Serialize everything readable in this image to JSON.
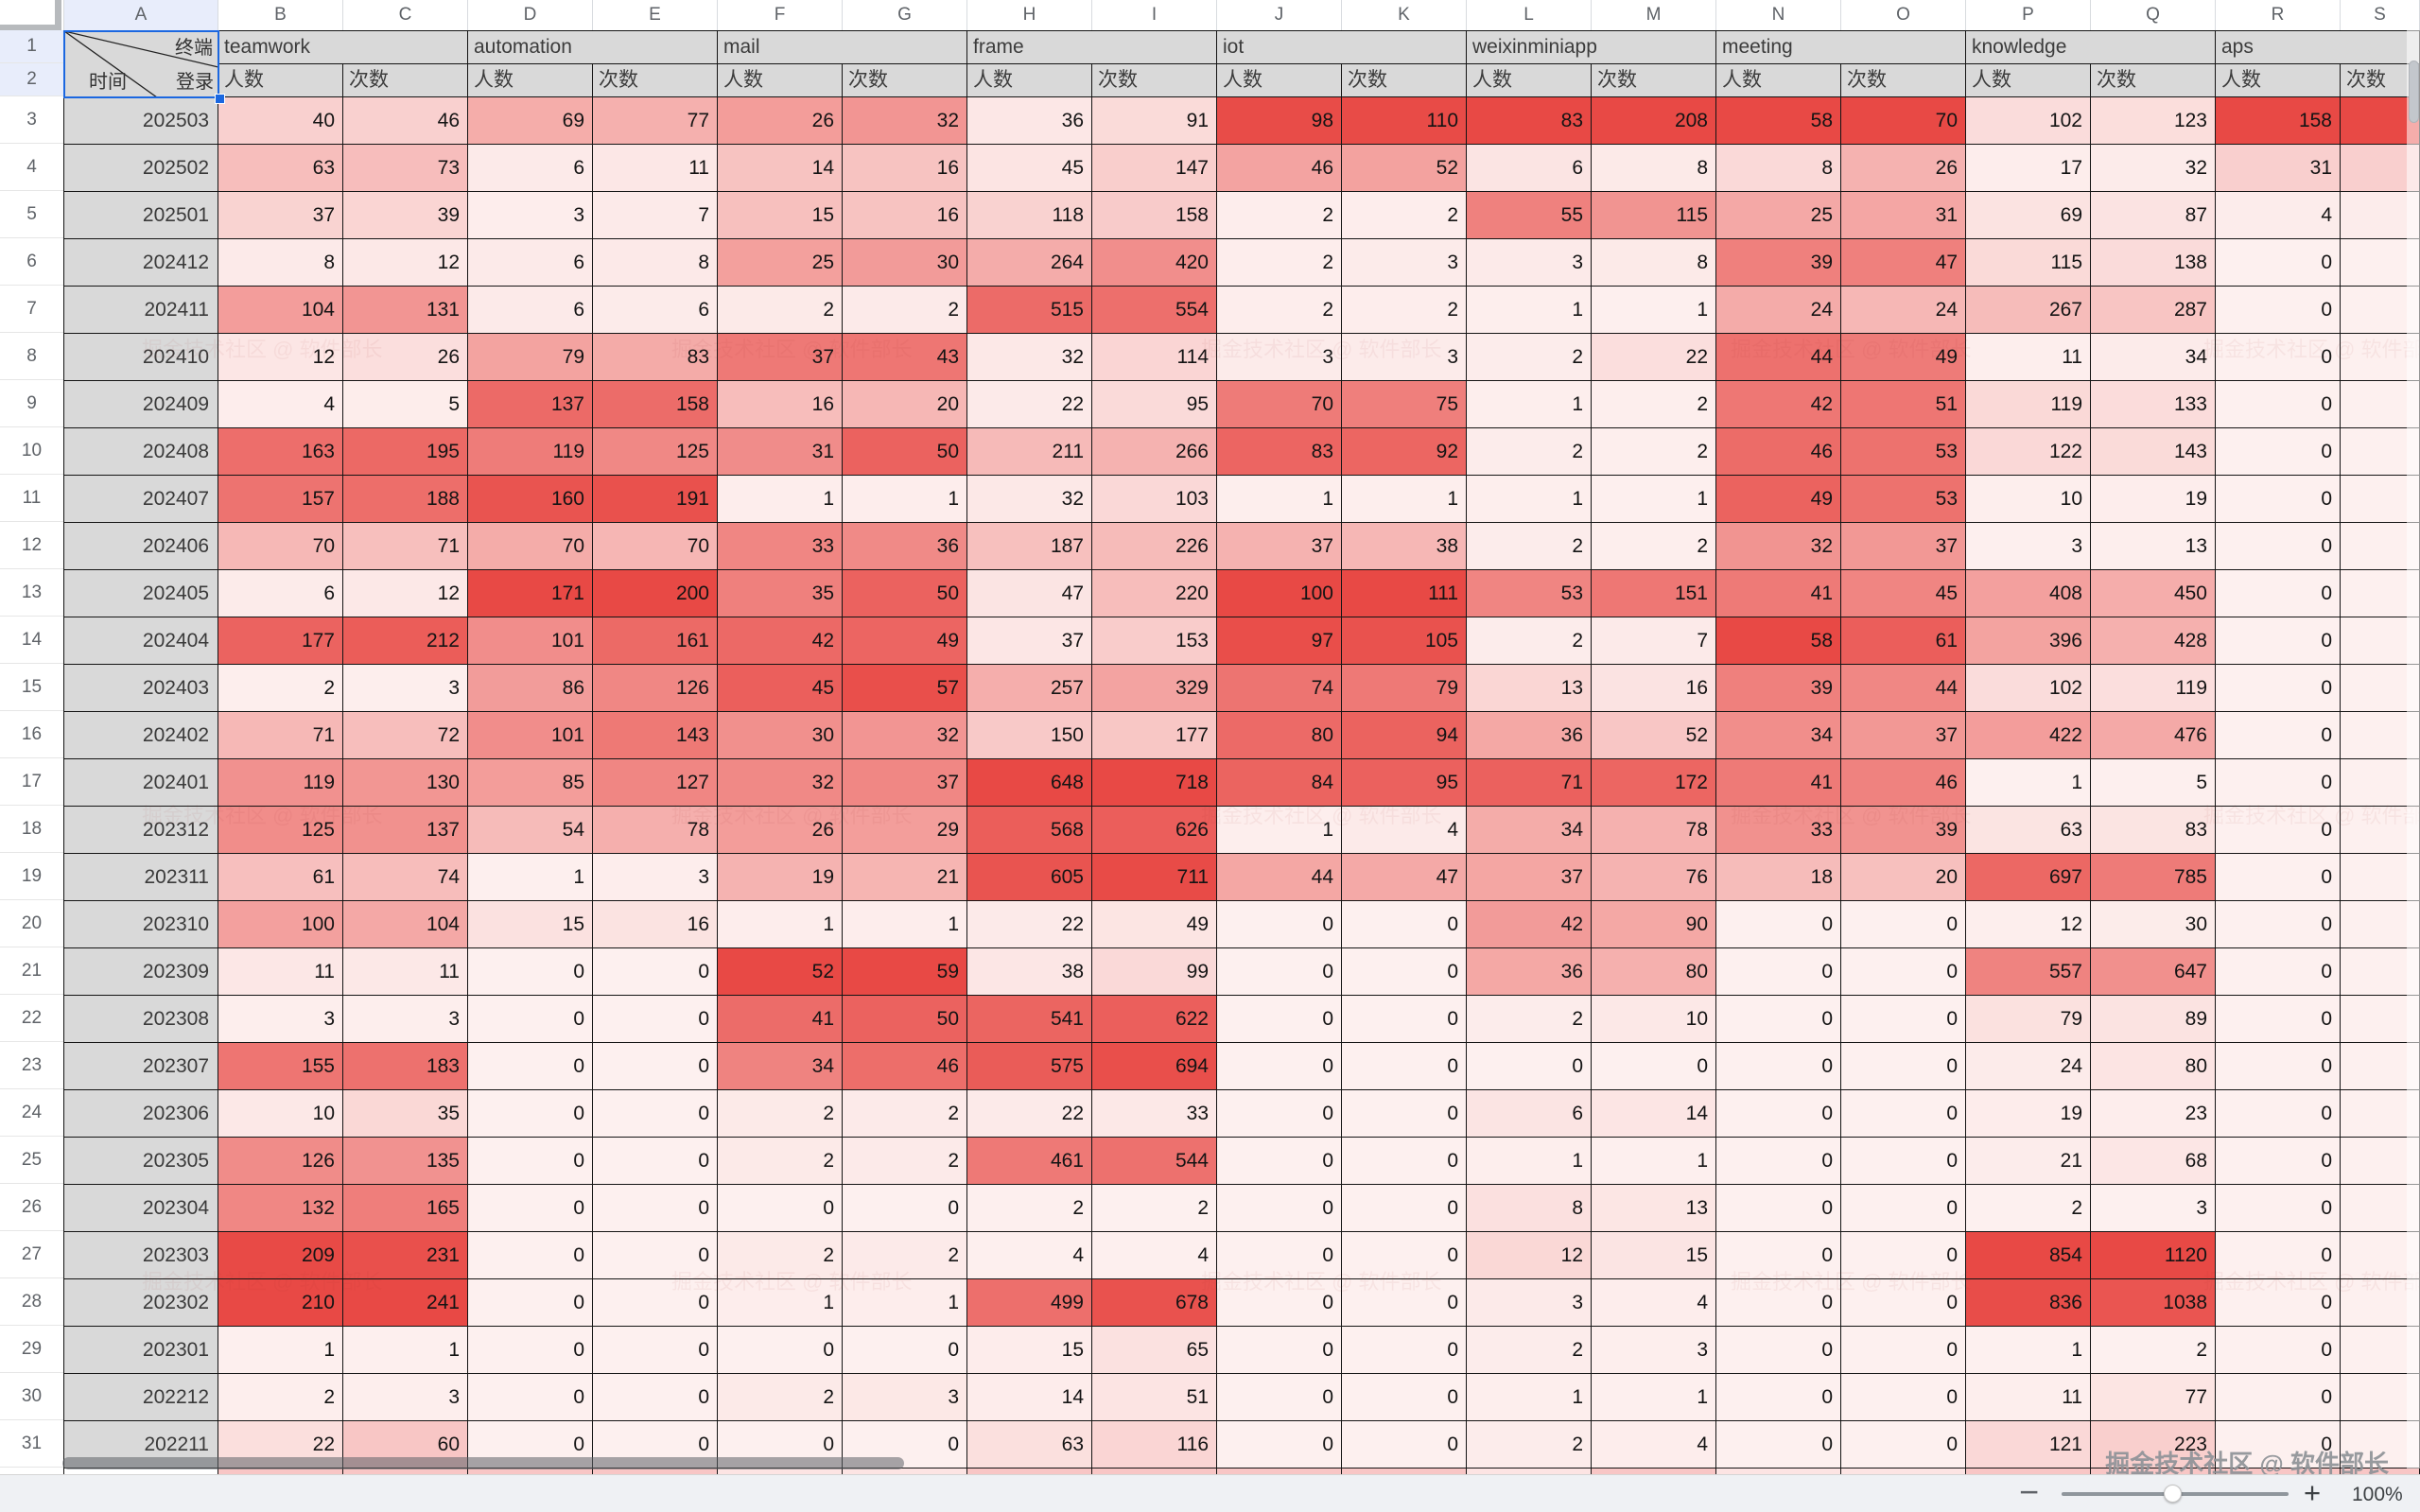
{
  "app": {
    "zoom_label": "100%"
  },
  "watermark": {
    "community": "掘金技术社区 @ 软件部长"
  },
  "sheet": {
    "column_letters": [
      "A",
      "B",
      "C",
      "D",
      "E",
      "F",
      "G",
      "H",
      "I",
      "J",
      "K",
      "L",
      "M",
      "N",
      "O",
      "P",
      "Q",
      "R",
      "S"
    ],
    "row_numbers": [
      "1",
      "2",
      "3",
      "4",
      "5",
      "6",
      "7",
      "8",
      "9",
      "10",
      "11",
      "12",
      "13",
      "14",
      "15",
      "16",
      "17",
      "18",
      "19",
      "20",
      "21",
      "22",
      "23",
      "24",
      "25",
      "26",
      "27",
      "28",
      "29",
      "30",
      "31"
    ],
    "corner_cell": {
      "top_right": "终端",
      "bottom_left": "时间",
      "bottom_right": "登录"
    },
    "groups": [
      {
        "label": "teamwork"
      },
      {
        "label": "automation"
      },
      {
        "label": "mail"
      },
      {
        "label": "frame"
      },
      {
        "label": "iot"
      },
      {
        "label": "weixinminiapp"
      },
      {
        "label": "meeting"
      },
      {
        "label": "knowledge"
      },
      {
        "label": "aps"
      }
    ],
    "subheader": {
      "people": "人数",
      "times": "次数"
    },
    "colors": {
      "heat_min": "#fdf0ef",
      "heat_max": "#e84945",
      "label_bg": "#d9d9d9",
      "selection": "#1b67e0"
    },
    "rows": [
      {
        "label": "202503",
        "values": [
          40,
          46,
          69,
          77,
          26,
          32,
          36,
          91,
          98,
          110,
          83,
          208,
          58,
          70,
          102,
          123,
          158
        ]
      },
      {
        "label": "202502",
        "values": [
          63,
          73,
          6,
          11,
          14,
          16,
          45,
          147,
          46,
          52,
          6,
          8,
          8,
          26,
          17,
          32,
          31
        ]
      },
      {
        "label": "202501",
        "values": [
          37,
          39,
          3,
          7,
          15,
          16,
          118,
          158,
          2,
          2,
          55,
          115,
          25,
          31,
          69,
          87,
          4
        ]
      },
      {
        "label": "202412",
        "values": [
          8,
          12,
          6,
          8,
          25,
          30,
          264,
          420,
          2,
          3,
          3,
          8,
          39,
          47,
          115,
          138,
          0
        ]
      },
      {
        "label": "202411",
        "values": [
          104,
          131,
          6,
          6,
          2,
          2,
          515,
          554,
          2,
          2,
          1,
          1,
          24,
          24,
          267,
          287,
          0
        ]
      },
      {
        "label": "202410",
        "values": [
          12,
          26,
          79,
          83,
          37,
          43,
          32,
          114,
          3,
          3,
          2,
          22,
          44,
          49,
          11,
          34,
          0
        ]
      },
      {
        "label": "202409",
        "values": [
          4,
          5,
          137,
          158,
          16,
          20,
          22,
          95,
          70,
          75,
          1,
          2,
          42,
          51,
          119,
          133,
          0
        ]
      },
      {
        "label": "202408",
        "values": [
          163,
          195,
          119,
          125,
          31,
          50,
          211,
          266,
          83,
          92,
          2,
          2,
          46,
          53,
          122,
          143,
          0
        ]
      },
      {
        "label": "202407",
        "values": [
          157,
          188,
          160,
          191,
          1,
          1,
          32,
          103,
          1,
          1,
          1,
          1,
          49,
          53,
          10,
          19,
          0
        ]
      },
      {
        "label": "202406",
        "values": [
          70,
          71,
          70,
          70,
          33,
          36,
          187,
          226,
          37,
          38,
          2,
          2,
          32,
          37,
          3,
          13,
          0
        ]
      },
      {
        "label": "202405",
        "values": [
          6,
          12,
          171,
          200,
          35,
          50,
          47,
          220,
          100,
          111,
          53,
          151,
          41,
          45,
          408,
          450,
          0
        ]
      },
      {
        "label": "202404",
        "values": [
          177,
          212,
          101,
          161,
          42,
          49,
          37,
          153,
          97,
          105,
          2,
          7,
          58,
          61,
          396,
          428,
          0
        ]
      },
      {
        "label": "202403",
        "values": [
          2,
          3,
          86,
          126,
          45,
          57,
          257,
          329,
          74,
          79,
          13,
          16,
          39,
          44,
          102,
          119,
          0
        ]
      },
      {
        "label": "202402",
        "values": [
          71,
          72,
          101,
          143,
          30,
          32,
          150,
          177,
          80,
          94,
          36,
          52,
          34,
          37,
          422,
          476,
          0
        ]
      },
      {
        "label": "202401",
        "values": [
          119,
          130,
          85,
          127,
          32,
          37,
          648,
          718,
          84,
          95,
          71,
          172,
          41,
          46,
          1,
          5,
          0
        ]
      },
      {
        "label": "202312",
        "values": [
          125,
          137,
          54,
          78,
          26,
          29,
          568,
          626,
          1,
          4,
          34,
          78,
          33,
          39,
          63,
          83,
          0
        ]
      },
      {
        "label": "202311",
        "values": [
          61,
          74,
          1,
          3,
          19,
          21,
          605,
          711,
          44,
          47,
          37,
          76,
          18,
          20,
          697,
          785,
          0
        ]
      },
      {
        "label": "202310",
        "values": [
          100,
          104,
          15,
          16,
          1,
          1,
          22,
          49,
          0,
          0,
          42,
          90,
          0,
          0,
          12,
          30,
          0
        ]
      },
      {
        "label": "202309",
        "values": [
          11,
          11,
          0,
          0,
          52,
          59,
          38,
          99,
          0,
          0,
          36,
          80,
          0,
          0,
          557,
          647,
          0
        ]
      },
      {
        "label": "202308",
        "values": [
          3,
          3,
          0,
          0,
          41,
          50,
          541,
          622,
          0,
          0,
          2,
          10,
          0,
          0,
          79,
          89,
          0
        ]
      },
      {
        "label": "202307",
        "values": [
          155,
          183,
          0,
          0,
          34,
          46,
          575,
          694,
          0,
          0,
          0,
          0,
          0,
          0,
          24,
          80,
          0
        ]
      },
      {
        "label": "202306",
        "values": [
          10,
          35,
          0,
          0,
          2,
          2,
          22,
          33,
          0,
          0,
          6,
          14,
          0,
          0,
          19,
          23,
          0
        ]
      },
      {
        "label": "202305",
        "values": [
          126,
          135,
          0,
          0,
          2,
          2,
          461,
          544,
          0,
          0,
          1,
          1,
          0,
          0,
          21,
          68,
          0
        ]
      },
      {
        "label": "202304",
        "values": [
          132,
          165,
          0,
          0,
          0,
          0,
          2,
          2,
          0,
          0,
          8,
          13,
          0,
          0,
          2,
          3,
          0
        ]
      },
      {
        "label": "202303",
        "values": [
          209,
          231,
          0,
          0,
          2,
          2,
          4,
          4,
          0,
          0,
          12,
          15,
          0,
          0,
          854,
          1120,
          0
        ]
      },
      {
        "label": "202302",
        "values": [
          210,
          241,
          0,
          0,
          1,
          1,
          499,
          678,
          0,
          0,
          3,
          4,
          0,
          0,
          836,
          1038,
          0
        ]
      },
      {
        "label": "202301",
        "values": [
          1,
          1,
          0,
          0,
          0,
          0,
          15,
          65,
          0,
          0,
          2,
          3,
          0,
          0,
          1,
          2,
          0
        ]
      },
      {
        "label": "202212",
        "values": [
          2,
          3,
          0,
          0,
          2,
          3,
          14,
          51,
          0,
          0,
          1,
          1,
          0,
          0,
          11,
          77,
          0
        ]
      },
      {
        "label": "202211",
        "values": [
          22,
          60,
          0,
          0,
          0,
          0,
          63,
          116,
          0,
          0,
          2,
          4,
          0,
          0,
          121,
          223,
          0
        ]
      }
    ]
  }
}
